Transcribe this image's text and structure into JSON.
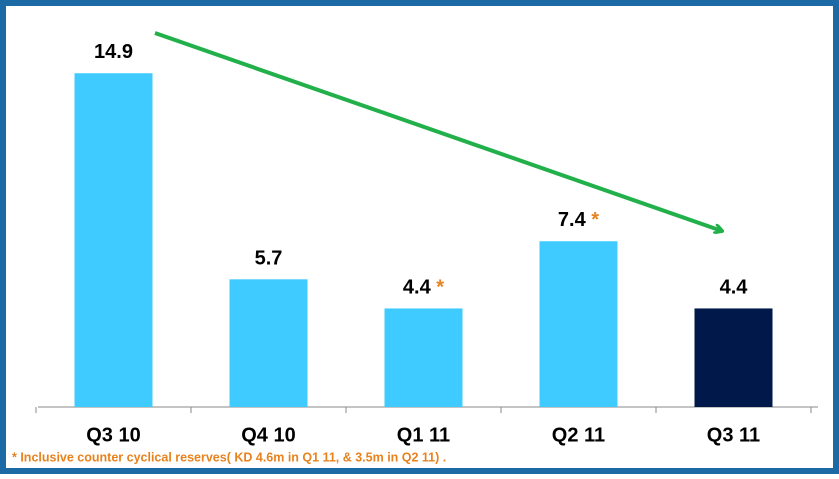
{
  "chart_data": {
    "type": "bar",
    "categories": [
      "Q3 10",
      "Q4 10",
      "Q1 11",
      "Q2 11",
      "Q3 11"
    ],
    "values": [
      14.9,
      5.7,
      4.4,
      7.4,
      4.4
    ],
    "colors": [
      "#3fcbff",
      "#3fcbff",
      "#3fcbff",
      "#3fcbff",
      "#00194a"
    ],
    "value_notes": [
      null,
      null,
      "*",
      "*",
      null
    ],
    "footnote": "* Inclusive counter cyclical reserves( KD 4.6m in Q1 11, & 3.5m in Q2 11) ."
  }
}
